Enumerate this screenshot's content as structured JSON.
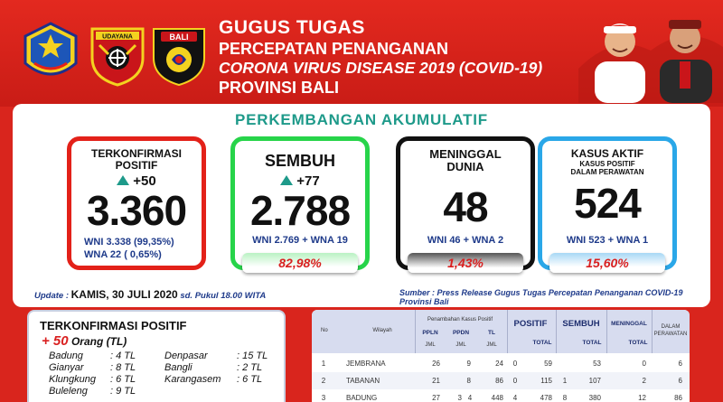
{
  "header": {
    "title1": "GUGUS TUGAS",
    "title2": "PERCEPATAN PENANGANAN",
    "title3": "CORONA VIRUS DISEASE 2019 (COVID-19)",
    "title4": "PROVINSI BALI",
    "logo_udayana_text": "UDAYANA",
    "logo_bali_text": "BALI"
  },
  "section_title": "PERKEMBANGAN AKUMULATIF",
  "cards": {
    "confirmed": {
      "label1": "TERKONFIRMASI",
      "label2": "POSITIF",
      "delta": "+50",
      "value": "3.360",
      "sub1": "WNI 3.338  (99,35%)",
      "sub2": "WNA 22      ( 0,65%)",
      "pct": ""
    },
    "recovered": {
      "label": "SEMBUH",
      "delta": "+77",
      "value": "2.788",
      "sub": "WNI 2.769 + WNA 19",
      "pct": "82,98%"
    },
    "deaths": {
      "label1": "MENINGGAL",
      "label2": "DUNIA",
      "value": "48",
      "sub": "WNI 46 + WNA 2",
      "pct": "1,43%"
    },
    "active": {
      "label1": "KASUS AKTIF",
      "label2": "KASUS POSITIF",
      "label3": "DALAM PERAWATAN",
      "value": "524",
      "sub": "WNI 523 + WNA 1",
      "pct": "15,60%"
    }
  },
  "update": {
    "prefix": "Update  :",
    "date": "KAMIS, 30 JULI 2020",
    "suffix": "sd. Pukul 18.00 WITA",
    "source": "Sumber :  Press Release Gugus Tugas Percepatan Penanganan COVID-19 Provinsi Bali"
  },
  "new_cases": {
    "title": "TERKONFIRMASI POSITIF",
    "plus": "+ 50",
    "unit": "Orang  (TL)",
    "districts": [
      {
        "name": "Badung",
        "val": ": 4 TL"
      },
      {
        "name": "Gianyar",
        "val": ": 8 TL"
      },
      {
        "name": "Klungkung",
        "val": ": 6 TL"
      },
      {
        "name": "Buleleng",
        "val": ": 9 TL"
      },
      {
        "name": "Denpasar",
        "val": ": 15 TL"
      },
      {
        "name": "Bangli",
        "val": ": 2 TL"
      },
      {
        "name": "Karangasem",
        "val": ": 6 TL"
      }
    ]
  },
  "table": {
    "h_no": "No",
    "h_wilayah": "Wilayah",
    "h_penambahan": "Penambahan Kasus Positif",
    "h_ppln": "PPLN",
    "h_ppdn": "PPDN",
    "h_tl": "TL",
    "h_jml": "JML",
    "h_positif": "POSITIF",
    "h_sembuh": "SEMBUH",
    "h_meninggal": "MENINGGAL",
    "h_dalam": "DALAM",
    "h_perawatan": "PERAWATAN",
    "h_total": "TOTAL",
    "rows": [
      {
        "no": "1",
        "wilayah": "JEMBRANA",
        "ppln": "26",
        "ppdn": "9",
        "tl_add": "",
        "tl": "24",
        "pos_add": "0",
        "pos_total": "59",
        "smb_add": "",
        "smb_total": "53",
        "mgl_add": "",
        "mgl_total": "0",
        "rawat": "6"
      },
      {
        "no": "2",
        "wilayah": "TABANAN",
        "ppln": "21",
        "ppdn": "8",
        "tl_add": "",
        "tl": "86",
        "pos_add": "0",
        "pos_total": "115",
        "smb_add": "1",
        "smb_total": "107",
        "mgl_add": "",
        "mgl_total": "2",
        "rawat": "6"
      },
      {
        "no": "3",
        "wilayah": "BADUNG",
        "ppln": "27",
        "ppdn": "3",
        "tl_add": "4",
        "tl": "448",
        "pos_add": "4",
        "pos_total": "478",
        "smb_add": "8",
        "smb_total": "380",
        "mgl_add": "",
        "mgl_total": "12",
        "rawat": "86"
      }
    ]
  },
  "colors": {
    "brand_red": "#d9251d",
    "teal": "#1e9a8a",
    "green": "#27d44a",
    "blue": "#2aa7e8"
  }
}
